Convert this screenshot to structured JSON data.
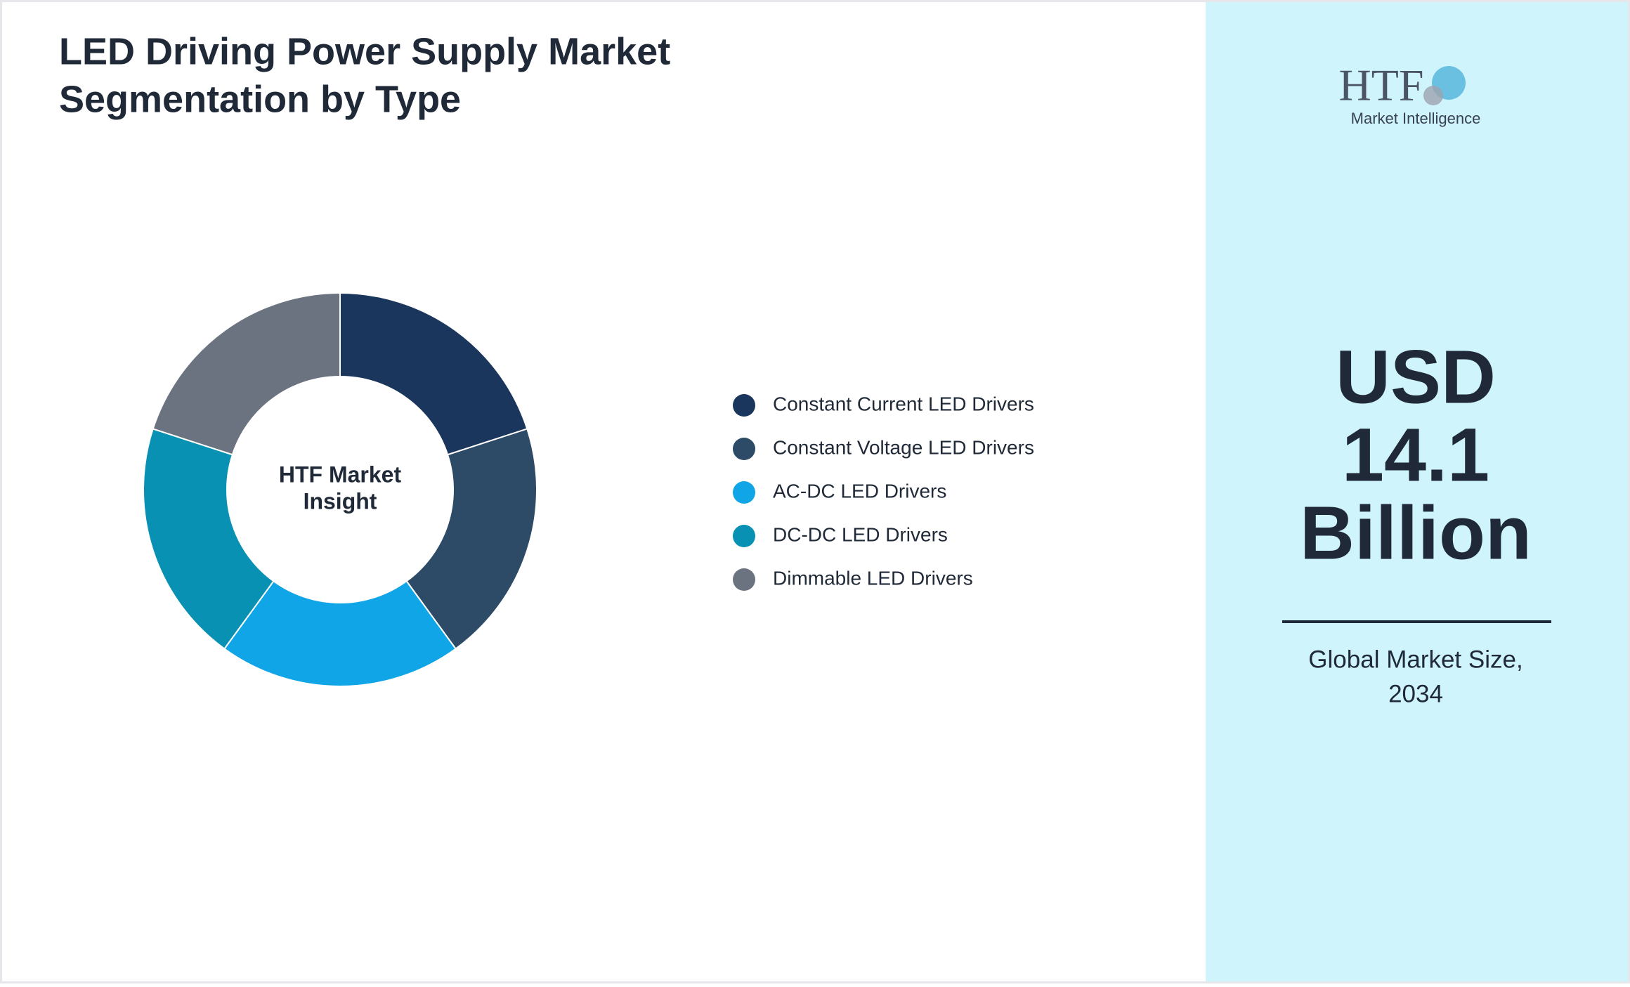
{
  "chart_data": {
    "type": "donut",
    "title": [
      "LED Driving Power Supply Market",
      "Segmentation by Type"
    ],
    "center_label": [
      "HTF Market",
      "Insight"
    ],
    "categories": [
      "Constant Current LED Drivers",
      "Constant Voltage LED Drivers",
      "AC-DC LED Drivers",
      "DC-DC LED Drivers",
      "Dimmable LED Drivers"
    ],
    "values": [
      20,
      20,
      20,
      20,
      20
    ],
    "colors": [
      "#1b365d",
      "#2d4a66",
      "#10a5e6",
      "#0891b2",
      "#6b7280"
    ]
  },
  "sidebar": {
    "logo": {
      "mark": "HTF",
      "text": "Market Intelligence"
    },
    "headline": [
      "USD",
      "14.1",
      "Billion"
    ],
    "caption": [
      "Global Market Size,",
      "2034"
    ]
  }
}
